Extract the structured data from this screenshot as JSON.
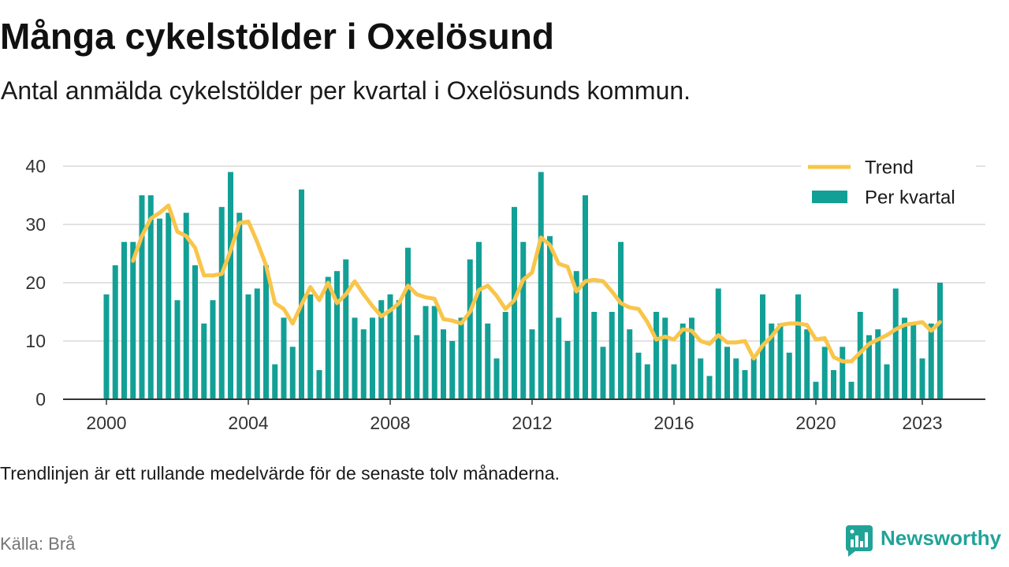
{
  "chart_data": {
    "type": "bar",
    "title": "Många cykelstölder i Oxelösund",
    "subtitle": "Antal anmälda cykelstölder per kvartal i Oxelösunds kommun.",
    "note": "Trendlinjen är ett rullande medelvärde för de senaste tolv månaderna.",
    "x": [
      "2000-Q1",
      "2000-Q2",
      "2000-Q3",
      "2000-Q4",
      "2001-Q1",
      "2001-Q2",
      "2001-Q3",
      "2001-Q4",
      "2002-Q1",
      "2002-Q2",
      "2002-Q3",
      "2002-Q4",
      "2003-Q1",
      "2003-Q2",
      "2003-Q3",
      "2003-Q4",
      "2004-Q1",
      "2004-Q2",
      "2004-Q3",
      "2004-Q4",
      "2005-Q1",
      "2005-Q2",
      "2005-Q3",
      "2005-Q4",
      "2006-Q1",
      "2006-Q2",
      "2006-Q3",
      "2006-Q4",
      "2007-Q1",
      "2007-Q2",
      "2007-Q3",
      "2007-Q4",
      "2008-Q1",
      "2008-Q2",
      "2008-Q3",
      "2008-Q4",
      "2009-Q1",
      "2009-Q2",
      "2009-Q3",
      "2009-Q4",
      "2010-Q1",
      "2010-Q2",
      "2010-Q3",
      "2010-Q4",
      "2011-Q1",
      "2011-Q2",
      "2011-Q3",
      "2011-Q4",
      "2012-Q1",
      "2012-Q2",
      "2012-Q3",
      "2012-Q4",
      "2013-Q1",
      "2013-Q2",
      "2013-Q3",
      "2013-Q4",
      "2014-Q1",
      "2014-Q2",
      "2014-Q3",
      "2014-Q4",
      "2015-Q1",
      "2015-Q2",
      "2015-Q3",
      "2015-Q4",
      "2016-Q1",
      "2016-Q2",
      "2016-Q3",
      "2016-Q4",
      "2017-Q1",
      "2017-Q2",
      "2017-Q3",
      "2017-Q4",
      "2018-Q1",
      "2018-Q2",
      "2018-Q3",
      "2018-Q4",
      "2019-Q1",
      "2019-Q2",
      "2019-Q3",
      "2019-Q4",
      "2020-Q1",
      "2020-Q2",
      "2020-Q3",
      "2020-Q4",
      "2021-Q1",
      "2021-Q2",
      "2021-Q3",
      "2021-Q4",
      "2022-Q1",
      "2022-Q2",
      "2022-Q3",
      "2022-Q4",
      "2023-Q1",
      "2023-Q2",
      "2023-Q3"
    ],
    "series": [
      {
        "name": "Per kvartal",
        "type": "bar",
        "color": "#12a096",
        "values": [
          18,
          23,
          27,
          27,
          35,
          35,
          31,
          32,
          17,
          32,
          23,
          13,
          17,
          33,
          39,
          32,
          18,
          19,
          23,
          6,
          14,
          9,
          36,
          18,
          5,
          21,
          22,
          24,
          14,
          12,
          14,
          17,
          18,
          17,
          26,
          11,
          16,
          16,
          12,
          10,
          14,
          24,
          27,
          13,
          7,
          15,
          33,
          27,
          12,
          39,
          28,
          14,
          10,
          22,
          35,
          15,
          9,
          15,
          27,
          12,
          8,
          6,
          15,
          14,
          6,
          13,
          14,
          7,
          4,
          19,
          9,
          7,
          5,
          7,
          18,
          13,
          13,
          8,
          18,
          12,
          3,
          9,
          5,
          9,
          3,
          15,
          11,
          12,
          6,
          19,
          14,
          13,
          7,
          13,
          20
        ]
      },
      {
        "name": "Trend",
        "type": "line",
        "color": "#f9c54a",
        "values": [
          null,
          null,
          null,
          23.75,
          28,
          31,
          32,
          33.25,
          28.75,
          28,
          26,
          21.25,
          21.25,
          21.5,
          25.5,
          30.25,
          30.5,
          27,
          23,
          16.5,
          15.5,
          13,
          16.25,
          19.25,
          17,
          20,
          16.5,
          18,
          20.25,
          18,
          16,
          14.25,
          15.25,
          16.5,
          19.5,
          18,
          17.5,
          17.25,
          13.75,
          13.5,
          13,
          15,
          18.75,
          19.5,
          17.75,
          15.5,
          17,
          20.5,
          21.75,
          27.75,
          26.5,
          23.25,
          22.75,
          18.5,
          20.25,
          20.5,
          20.25,
          18.5,
          16.5,
          15.75,
          15.5,
          13.25,
          10.25,
          10.75,
          10.25,
          12,
          11.75,
          10,
          9.5,
          11,
          9.75,
          9.75,
          10,
          7,
          9.25,
          10.75,
          12.75,
          13,
          13,
          12.75,
          10.25,
          10.5,
          7.25,
          6.5,
          6.5,
          8,
          9.5,
          10.25,
          11,
          12,
          12.75,
          13,
          13.25,
          11.75,
          13.25
        ]
      }
    ],
    "xticks": [
      "2000",
      "2004",
      "2008",
      "2012",
      "2016",
      "2020",
      "2023"
    ],
    "yticks": [
      0,
      10,
      20,
      30,
      40
    ],
    "ylim": [
      0,
      40
    ],
    "grid": true,
    "legend_position": "top-right"
  },
  "footer": {
    "source": "Källa: Brå",
    "logo": {
      "text": "Newsworthy",
      "icon": "newsworthy-logo-icon",
      "color": "#22a398"
    }
  }
}
